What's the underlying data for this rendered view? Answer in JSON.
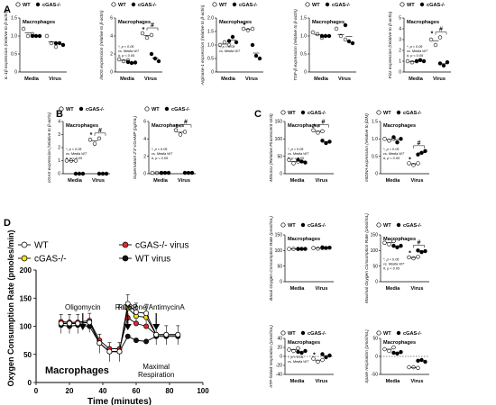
{
  "panel_letters": [
    "A",
    "B",
    "C",
    "D"
  ],
  "legend": {
    "wt": "WT",
    "cgas": "cGAS-/-"
  },
  "categories": [
    "Media",
    "Virus"
  ],
  "chart_data": [
    {
      "type": "scatter",
      "panel": "A",
      "title": "Macrophages",
      "ylabel": "IL-1β expression (relative to β-actin)",
      "ylim": [
        0,
        1.5
      ],
      "yticks": [
        "0",
        "0.5",
        "1.0",
        "1.5"
      ],
      "groups": [
        {
          "wt": [
            1.2,
            1.0,
            1.05
          ],
          "cgas": [
            1.0,
            1.0,
            1.0
          ]
        },
        {
          "wt": [
            1.0,
            0.8,
            0.7
          ],
          "cgas": [
            0.8,
            0.8,
            0.75
          ]
        }
      ],
      "annotations": [],
      "sig": []
    },
    {
      "type": "scatter",
      "panel": "A",
      "title": "Macrophages",
      "ylabel": "iNOS expression (relative to β-actin)",
      "ylim": [
        0,
        6
      ],
      "yticks": [
        "0",
        "2",
        "4",
        "6"
      ],
      "groups": [
        {
          "wt": [
            1.4,
            1.2,
            1.3
          ],
          "cgas": [
            1.1,
            1.0,
            1.05
          ]
        },
        {
          "wt": [
            4.3,
            3.8,
            4.1
          ],
          "cgas": [
            2.0,
            1.5,
            1.2
          ]
        }
      ],
      "annotations": [
        "*, p < 0.05",
        "vs. Media WT",
        "#, p < 0.05"
      ],
      "sig": [
        "*",
        "#"
      ]
    },
    {
      "type": "scatter",
      "panel": "A",
      "title": "Macrophages",
      "ylabel": "Arginase-1 expression (relative to β-actin)",
      "ylim": [
        0,
        2.0
      ],
      "yticks": [
        "0",
        "0.5",
        "1.0",
        "1.5",
        "2.0"
      ],
      "groups": [
        {
          "wt": [
            1.0,
            1.1,
            1.0
          ],
          "cgas": [
            1.15,
            1.3,
            1.1
          ]
        },
        {
          "wt": [
            1.6,
            1.55,
            1.6
          ],
          "cgas": [
            1.0,
            0.6,
            0.5
          ]
        }
      ],
      "annotations": [
        "*, p < 0.05",
        "vs. Media WT"
      ],
      "sig": [
        "*"
      ]
    },
    {
      "type": "scatter",
      "panel": "A",
      "title": "Macrophages",
      "ylabel": "TGF-β expression (relative to β-actin)",
      "ylim": [
        0,
        1.5
      ],
      "yticks": [
        "0",
        "0.5",
        "1.0",
        "1.5"
      ],
      "groups": [
        {
          "wt": [
            1.1,
            1.05,
            0.95
          ],
          "cgas": [
            1.0,
            1.0,
            1.0
          ]
        },
        {
          "wt": [
            1.2,
            1.0,
            0.9
          ],
          "cgas": [
            1.3,
            0.85,
            0.8
          ]
        }
      ],
      "annotations": [],
      "sig": []
    },
    {
      "type": "scatter",
      "panel": "A",
      "title": "Macrophages",
      "ylabel": "Fizz expression (relative to β-actin)",
      "ylim": [
        0,
        5
      ],
      "yticks": [
        "0",
        "1",
        "2",
        "3",
        "4",
        "5"
      ],
      "groups": [
        {
          "wt": [
            1.0,
            0.9,
            1.0
          ],
          "cgas": [
            1.0,
            1.1,
            1.0
          ]
        },
        {
          "wt": [
            3.0,
            2.5,
            3.2
          ],
          "cgas": [
            0.8,
            0.6,
            0.9
          ]
        }
      ],
      "annotations": [
        "*, p < 0.05",
        "vs. Media WT",
        "#, p < 0.05"
      ],
      "sig": [
        "*",
        "#"
      ]
    },
    {
      "type": "scatter",
      "panel": "B",
      "title": "Macrophages",
      "ylabel": "cGAS expression (relative to β-actin)",
      "ylim": [
        0,
        4
      ],
      "yticks": [
        "0",
        "1",
        "2",
        "3",
        "4"
      ],
      "groups": [
        {
          "wt": [
            1.0,
            1.0,
            1.0
          ],
          "cgas": [
            0,
            0,
            0
          ]
        },
        {
          "wt": [
            2.6,
            2.3,
            2.7
          ],
          "cgas": [
            0,
            0,
            0
          ]
        }
      ],
      "annotations": [
        "*, p < 0.05",
        "vs. Media WT",
        "#, p < 0.05"
      ],
      "sig": [
        "*",
        "#"
      ]
    },
    {
      "type": "scatter",
      "panel": "B",
      "title": "Macrophages",
      "ylabel": "Supernatant 2'3'-cGAMP (pg/mL)",
      "ylim": [
        0,
        6
      ],
      "yticks": [
        "0",
        "2",
        "4",
        "6"
      ],
      "groups": [
        {
          "wt": [
            0.1,
            0.1,
            0.1
          ],
          "cgas": [
            0.1,
            0.1,
            0.1
          ]
        },
        {
          "wt": [
            5.0,
            4.5,
            4.8
          ],
          "cgas": [
            0.1,
            0.1,
            0.1
          ]
        }
      ],
      "annotations": [
        "*, p < 0.05",
        "vs. Media WT",
        "#, p < 0.05"
      ],
      "sig": [
        "*",
        "#"
      ]
    },
    {
      "type": "scatter",
      "panel": "C",
      "title": "Macrophages",
      "ylabel": "MitoSox (Relative Fluorescent Unit)",
      "ylim": [
        0,
        150
      ],
      "yticks": [
        "0",
        "50",
        "100",
        "150"
      ],
      "groups": [
        {
          "wt": [
            40,
            30,
            35
          ],
          "cgas": [
            40,
            35,
            32
          ]
        },
        {
          "wt": [
            125,
            118,
            122
          ],
          "cgas": [
            95,
            88,
            92
          ]
        }
      ],
      "annotations": [
        "*, p < 0.05",
        "vs. Media WT",
        "#, p < 0.05"
      ],
      "sig": [
        "*",
        "#"
      ]
    },
    {
      "type": "scatter",
      "panel": "C",
      "title": "Macrophages",
      "ylabel": "mtDNA expression (relative to β2M)",
      "ylim": [
        0,
        1.5
      ],
      "yticks": [
        "0",
        "0.5",
        "1.0",
        "1.5"
      ],
      "groups": [
        {
          "wt": [
            1.0,
            0.95,
            1.0
          ],
          "cgas": [
            1.05,
            0.9,
            1.0
          ]
        },
        {
          "wt": [
            0.3,
            0.25,
            0.3
          ],
          "cgas": [
            0.55,
            0.6,
            0.65
          ]
        }
      ],
      "annotations": [
        "*, p < 0.05",
        "vs. Media WT",
        "#, p < 0.05"
      ],
      "sig": [
        "*",
        "#"
      ]
    },
    {
      "type": "scatter",
      "panel": "C",
      "title": "Macrophages",
      "ylabel": "Basal Oxygen Consumption Rate (pmol/mL)",
      "ylim": [
        0,
        150
      ],
      "yticks": [
        "0",
        "50",
        "100",
        "150"
      ],
      "groups": [
        {
          "wt": [
            105,
            105,
            105
          ],
          "cgas": [
            105,
            105,
            105
          ]
        },
        {
          "wt": [
            108,
            106,
            108
          ],
          "cgas": [
            110,
            108,
            109
          ]
        }
      ],
      "annotations": [],
      "sig": []
    },
    {
      "type": "scatter",
      "panel": "C",
      "title": "Macrophages",
      "ylabel": "Maximal Oxygen Consumption Rate (pmol/mL)",
      "ylim": [
        0,
        150
      ],
      "yticks": [
        "0",
        "50",
        "100",
        "150"
      ],
      "groups": [
        {
          "wt": [
            125,
            120,
            130
          ],
          "cgas": [
            115,
            110,
            115
          ]
        },
        {
          "wt": [
            78,
            75,
            80
          ],
          "cgas": [
            100,
            95,
            98
          ]
        }
      ],
      "annotations": [
        "*, p < 0.05",
        "vs. Media WT",
        "#, p < 0.05"
      ],
      "sig": [
        "*",
        "#"
      ]
    },
    {
      "type": "scatter",
      "panel": "C",
      "title": "Macrophages",
      "ylabel": "ATP-linked respiration (pmol/mL)",
      "ylim": [
        -40,
        40
      ],
      "yticks": [
        "-40",
        "-20",
        "0",
        "20",
        "40"
      ],
      "groups": [
        {
          "wt": [
            15,
            12,
            18
          ],
          "cgas": [
            10,
            8,
            12
          ]
        },
        {
          "wt": [
            -5,
            -12,
            -8
          ],
          "cgas": [
            5,
            -2,
            2
          ]
        }
      ],
      "annotations": [
        "*, p < 0.05",
        "vs. Media WT"
      ],
      "sig": [
        "*"
      ]
    },
    {
      "type": "scatter",
      "panel": "C",
      "title": "Macrophages",
      "ylabel": "Spare respiration (pmol/mL)",
      "ylim": [
        -50,
        50
      ],
      "yticks": [
        "-50",
        "0",
        "50"
      ],
      "groups": [
        {
          "wt": [
            20,
            15,
            25
          ],
          "cgas": [
            10,
            8,
            12
          ]
        },
        {
          "wt": [
            -30,
            -30,
            -32
          ],
          "cgas": [
            -12,
            -10,
            -15
          ]
        }
      ],
      "annotations": [],
      "sig": []
    },
    {
      "type": "line",
      "panel": "D",
      "title": "Macrophages",
      "xlabel": "Time (minutes)",
      "ylabel": "Oxygen Consumption Rate (pmoles/min)",
      "xlim": [
        0,
        100
      ],
      "ylim": [
        0,
        200
      ],
      "xticks": [
        "0",
        "20",
        "40",
        "60",
        "80",
        "100"
      ],
      "yticks": [
        "0",
        "50",
        "100",
        "150",
        "200"
      ],
      "x": [
        15,
        20,
        25,
        32,
        38,
        44,
        50,
        55,
        60,
        66,
        72,
        78,
        85
      ],
      "series": [
        {
          "name": "WT",
          "color": "#ffffff",
          "values": [
            105,
            105,
            105,
            107,
            70,
            55,
            55,
            140,
            125,
            123,
            85,
            85,
            85
          ]
        },
        {
          "name": "cGAS-/-",
          "color": "#f2e21b",
          "values": [
            105,
            105,
            105,
            107,
            70,
            55,
            55,
            132,
            118,
            116,
            85,
            85,
            85
          ]
        },
        {
          "name": "cGAS-/- virus",
          "color": "#e8262b",
          "values": [
            108,
            107,
            107,
            110,
            75,
            60,
            60,
            115,
            105,
            100,
            85,
            85,
            85
          ]
        },
        {
          "name": "WT virus",
          "color": "#111111",
          "values": [
            102,
            100,
            102,
            100,
            70,
            55,
            55,
            82,
            75,
            73,
            82,
            82,
            82
          ]
        }
      ],
      "annotations": [
        "Oligomycin",
        "FCCP",
        "Rotenone/AntimycinA",
        "Maximal",
        "Respiration"
      ]
    }
  ]
}
